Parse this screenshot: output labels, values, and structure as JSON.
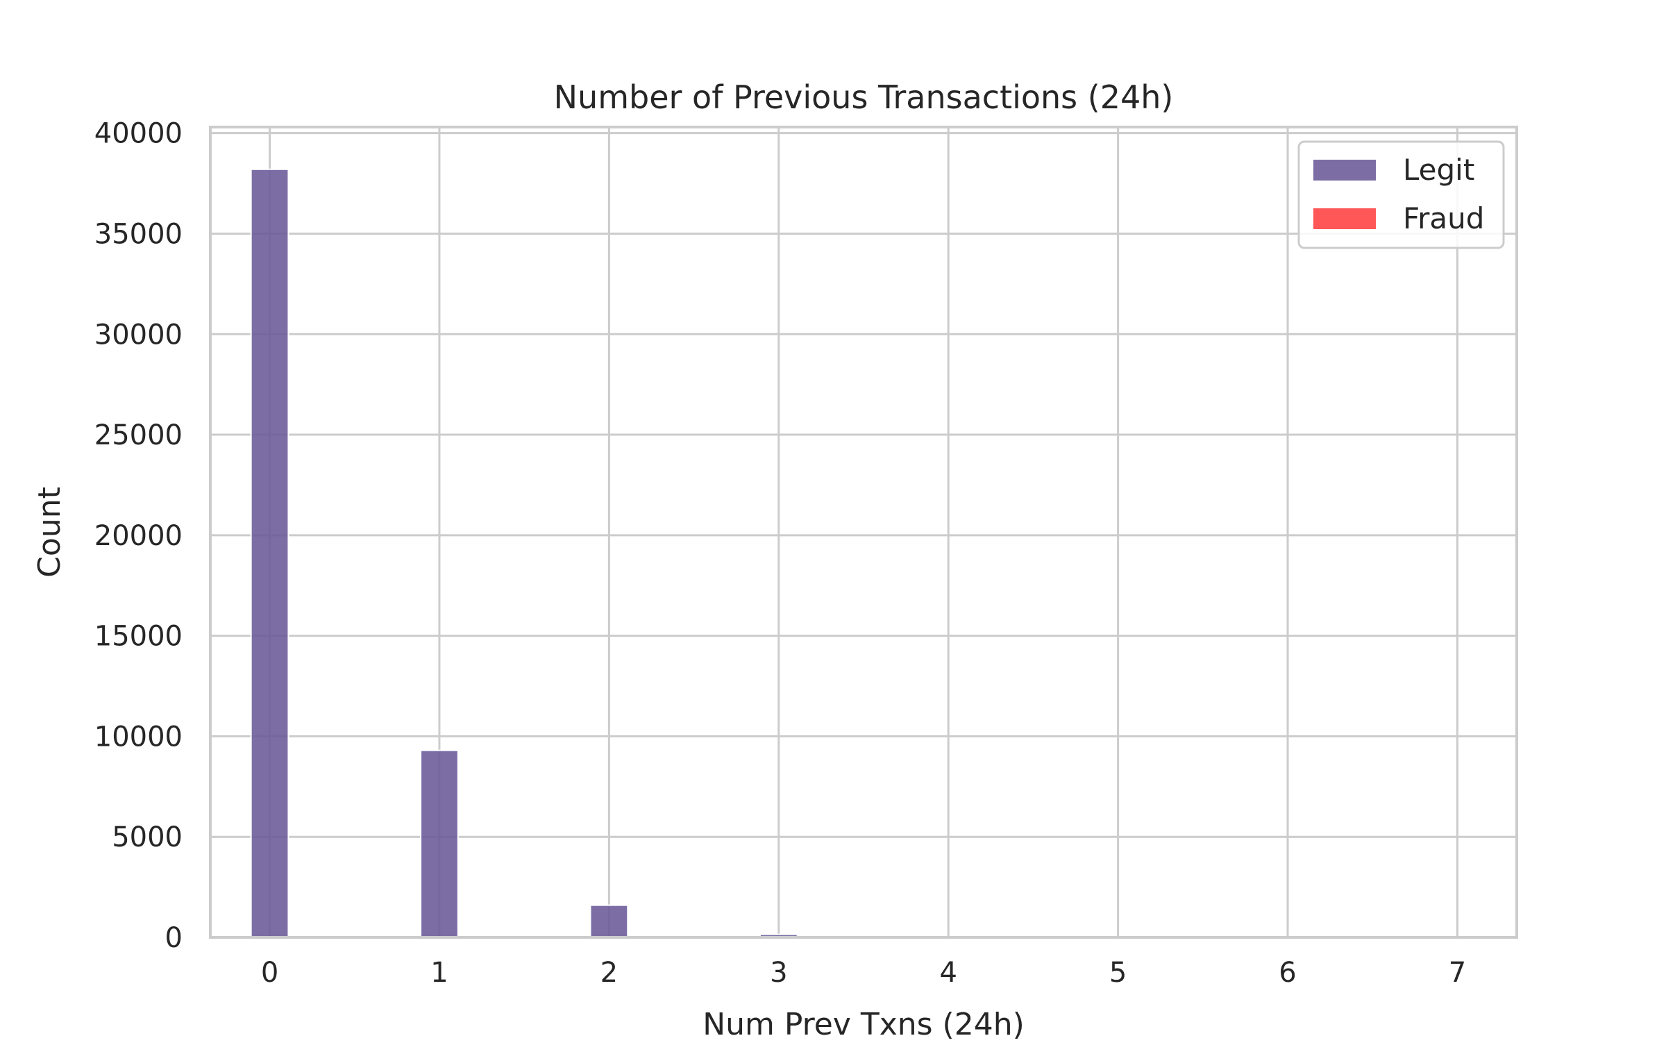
{
  "chart_data": {
    "type": "bar",
    "title": "Number of Previous Transactions (24h)",
    "xlabel": "Num Prev Txns (24h)",
    "ylabel": "Count",
    "xlim": [
      -0.35,
      7.35
    ],
    "ylim": [
      0,
      40300
    ],
    "x_ticks": [
      "0",
      "1",
      "2",
      "3",
      "4",
      "5",
      "6",
      "7"
    ],
    "y_ticks": [
      "0",
      "5000",
      "10000",
      "15000",
      "20000",
      "25000",
      "30000",
      "35000",
      "40000"
    ],
    "grid": true,
    "legend_position": "top-right",
    "series": [
      {
        "name": "Legit",
        "color": "#6A5A99",
        "x": [
          0,
          1,
          2,
          3
        ],
        "values": [
          38200,
          9300,
          1600,
          150
        ]
      },
      {
        "name": "Fraud",
        "color": "#FF4040",
        "x": [
          0,
          1,
          2,
          3
        ],
        "values": [
          0,
          0,
          0,
          0
        ]
      }
    ]
  }
}
